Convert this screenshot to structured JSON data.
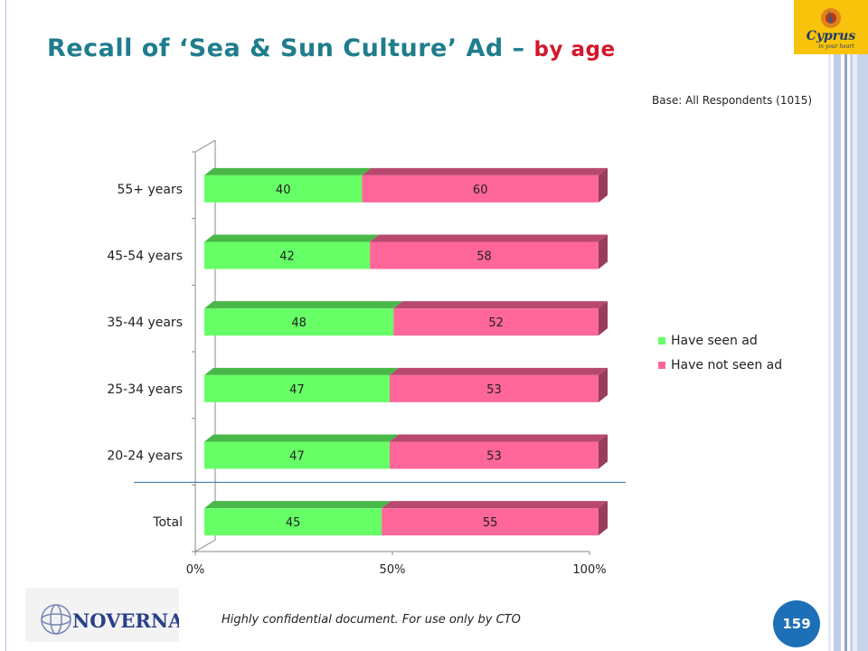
{
  "slide": {
    "title_main": "Recall of ‘Sea & Sun Culture’ Ad –",
    "title_sub": "by age",
    "base_note": "Base: All Respondents (1015)",
    "footer_note": "Highly confidential document. For use only by CTO",
    "page_number": "159",
    "logo_brand_text": "Cyprus",
    "logo_tagline": "in your heart",
    "company_logo_text": "NOVERNA"
  },
  "chart_data": {
    "type": "bar",
    "orientation": "horizontal",
    "stacked": "percent",
    "categories": [
      "55+ years",
      "45-54 years",
      "35-44 years",
      "25-34 years",
      "20-24 years",
      "Total"
    ],
    "series": [
      {
        "name": "Have seen ad",
        "values": [
          40,
          42,
          48,
          47,
          47,
          45
        ],
        "color": "#66ff66"
      },
      {
        "name": "Have not seen ad",
        "values": [
          60,
          58,
          52,
          53,
          53,
          55
        ],
        "color": "#ff6699"
      }
    ],
    "xlim": [
      0,
      100
    ],
    "xticks": [
      "0%",
      "50%",
      "100%"
    ],
    "legend_position": "right",
    "grid": false,
    "separator_before": "Total"
  }
}
